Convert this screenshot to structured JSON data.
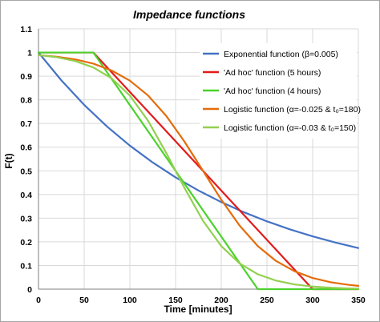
{
  "chart_data": {
    "type": "line",
    "title": "Impedance functions",
    "xlabel": "Time [minutes]",
    "ylabel": "F(t)",
    "xlim": [
      0,
      350
    ],
    "ylim": [
      0,
      1.1
    ],
    "x_ticks": [
      "0",
      "50",
      "100",
      "150",
      "200",
      "250",
      "300",
      "350"
    ],
    "y_ticks": [
      "0",
      "0.1",
      "0.2",
      "0.3",
      "0.4",
      "0.5",
      "0.6",
      "0.7",
      "0.8",
      "0.9",
      "1",
      "1.1"
    ],
    "grid": true,
    "legend_position": "top-right",
    "series": [
      {
        "name": "Exponential function (β=0.005)",
        "color": "#4472c4",
        "x": [
          0,
          25,
          50,
          75,
          100,
          125,
          150,
          175,
          200,
          225,
          250,
          275,
          300,
          325,
          350
        ],
        "y": [
          1,
          0.8825,
          0.7788,
          0.6873,
          0.6065,
          0.5353,
          0.4724,
          0.4169,
          0.3679,
          0.3247,
          0.2865,
          0.2528,
          0.2231,
          0.1969,
          0.1738
        ]
      },
      {
        "name": "'Ad hoc' function (5 hours)",
        "color": "#e31a1c",
        "x": [
          0,
          60,
          300,
          350
        ],
        "y": [
          1,
          1,
          0,
          0
        ]
      },
      {
        "name": "'Ad hoc' function (4 hours)",
        "color": "#4cd22d",
        "x": [
          0,
          60,
          240,
          350
        ],
        "y": [
          1,
          1,
          0,
          0
        ]
      },
      {
        "name": "Logistic function (α=-0.025 & t₀=180)",
        "color": "#e46c0a",
        "x": [
          0,
          20,
          40,
          60,
          80,
          100,
          120,
          140,
          160,
          180,
          200,
          220,
          240,
          260,
          280,
          300,
          320,
          340,
          350
        ],
        "y": [
          0.989,
          0.982,
          0.971,
          0.953,
          0.924,
          0.881,
          0.818,
          0.731,
          0.622,
          0.5,
          0.378,
          0.269,
          0.182,
          0.119,
          0.076,
          0.047,
          0.029,
          0.018,
          0.014
        ]
      },
      {
        "name": "Logistic function (α=-0.03 & t₀=150)",
        "color": "#92d050",
        "x": [
          0,
          20,
          40,
          60,
          80,
          100,
          120,
          140,
          150,
          160,
          180,
          200,
          220,
          240,
          260,
          280,
          300,
          320,
          340,
          350
        ],
        "y": [
          0.989,
          0.98,
          0.964,
          0.937,
          0.891,
          0.818,
          0.711,
          0.574,
          0.5,
          0.426,
          0.289,
          0.182,
          0.109,
          0.063,
          0.036,
          0.02,
          0.011,
          0.006,
          0.003,
          0.002
        ]
      }
    ]
  }
}
